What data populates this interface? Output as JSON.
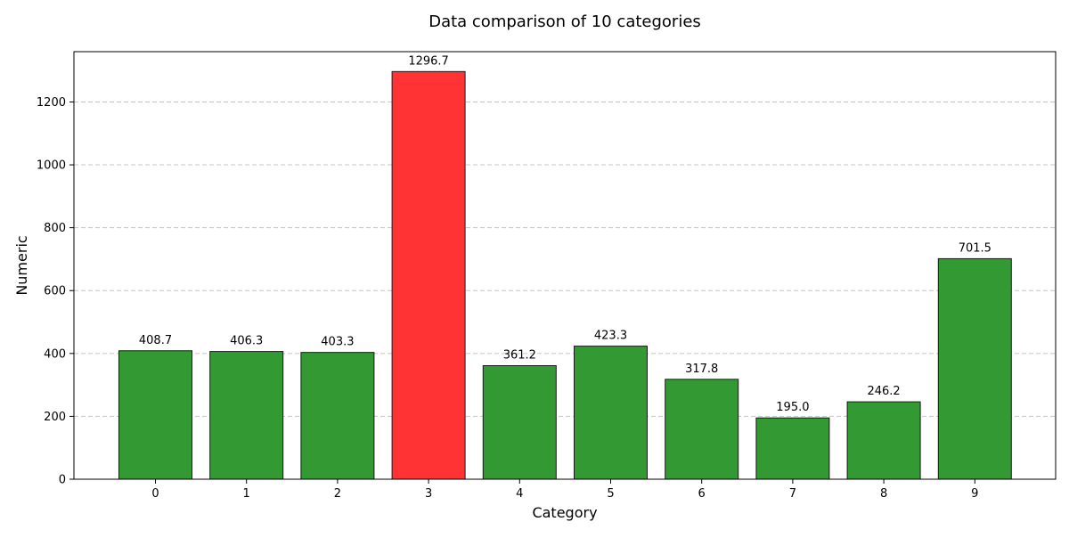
{
  "chart_data": {
    "type": "bar",
    "title": "Data comparison of 10 categories",
    "xlabel": "Category",
    "ylabel": "Numeric",
    "categories": [
      "0",
      "1",
      "2",
      "3",
      "4",
      "5",
      "6",
      "7",
      "8",
      "9"
    ],
    "values": [
      408.7,
      406.3,
      403.3,
      1296.7,
      361.2,
      423.3,
      317.8,
      195.0,
      246.2,
      701.5
    ],
    "data_labels": [
      "408.7",
      "406.3",
      "403.3",
      "1296.7",
      "361.2",
      "423.3",
      "317.8",
      "195.0",
      "246.2",
      "701.5"
    ],
    "highlight_index": 3,
    "ylim": [
      0,
      1360
    ],
    "yticks": [
      0,
      200,
      400,
      600,
      800,
      1000,
      1200
    ],
    "grid": "y-dashed",
    "colors": {
      "bar": "#339933",
      "highlight": "#ff3333",
      "edge": "#1a1a1a",
      "grid": "#c4c4c4"
    }
  }
}
